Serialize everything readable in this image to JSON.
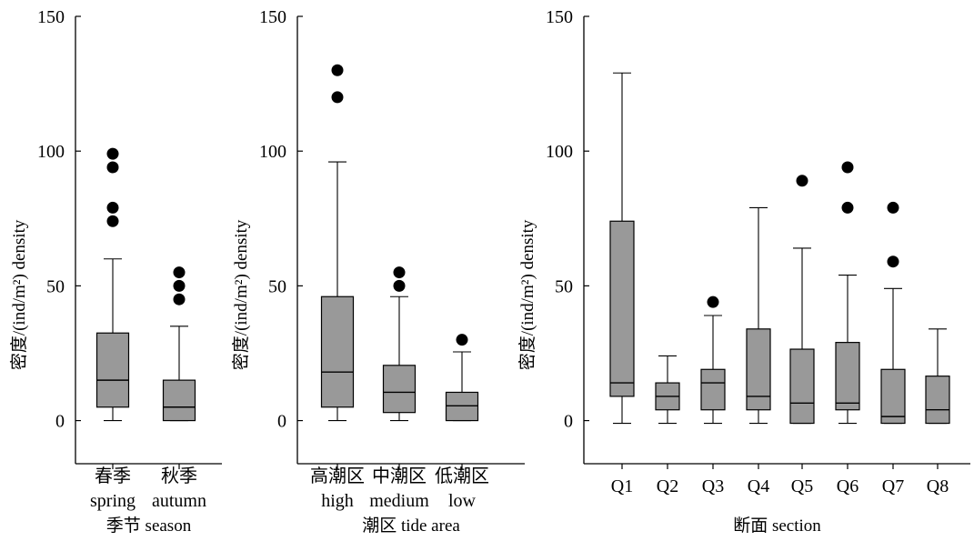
{
  "chart_data": [
    {
      "type": "boxplot",
      "ylabel": "密度/(ind/m²) density",
      "xlabel": "季节 season",
      "ylim": [
        -16,
        150
      ],
      "yticks": [
        0,
        50,
        100,
        150
      ],
      "categories": [
        {
          "label_cn": "春季",
          "label_en": "spring"
        },
        {
          "label_cn": "秋季",
          "label_en": "autumn"
        }
      ],
      "boxes": [
        {
          "whisker_low": 0,
          "q1": 5,
          "median": 15,
          "q3": 32.5,
          "whisker_high": 60,
          "outliers": [
            74,
            79,
            94,
            99
          ]
        },
        {
          "whisker_low": 0,
          "q1": 0,
          "median": 5,
          "q3": 15,
          "whisker_high": 35,
          "outliers": [
            45,
            50,
            55
          ]
        }
      ]
    },
    {
      "type": "boxplot",
      "ylabel": "密度/(ind/m²) density",
      "xlabel": "潮区 tide area",
      "ylim": [
        -16,
        150
      ],
      "yticks": [
        0,
        50,
        100,
        150
      ],
      "categories": [
        {
          "label_cn": "高潮区",
          "label_en": "high"
        },
        {
          "label_cn": "中潮区",
          "label_en": "medium"
        },
        {
          "label_cn": "低潮区",
          "label_en": "low"
        }
      ],
      "boxes": [
        {
          "whisker_low": 0,
          "q1": 5,
          "median": 18,
          "q3": 46,
          "whisker_high": 96,
          "outliers": [
            120,
            130
          ]
        },
        {
          "whisker_low": 0,
          "q1": 3,
          "median": 10.5,
          "q3": 20.5,
          "whisker_high": 46,
          "outliers": [
            50,
            55
          ]
        },
        {
          "whisker_low": 0,
          "q1": 0,
          "median": 5.5,
          "q3": 10.5,
          "whisker_high": 25.5,
          "outliers": [
            30
          ]
        }
      ]
    },
    {
      "type": "boxplot",
      "ylabel": "密度/(ind/m²) density",
      "xlabel": "断面 section",
      "ylim": [
        -16,
        150
      ],
      "yticks": [
        0,
        50,
        100,
        150
      ],
      "categories": [
        {
          "label_cn": "",
          "label_en": "Q1"
        },
        {
          "label_cn": "",
          "label_en": "Q2"
        },
        {
          "label_cn": "",
          "label_en": "Q3"
        },
        {
          "label_cn": "",
          "label_en": "Q4"
        },
        {
          "label_cn": "",
          "label_en": "Q5"
        },
        {
          "label_cn": "",
          "label_en": "Q6"
        },
        {
          "label_cn": "",
          "label_en": "Q7"
        },
        {
          "label_cn": "",
          "label_en": "Q8"
        }
      ],
      "boxes": [
        {
          "whisker_low": -1,
          "q1": 9,
          "median": 14,
          "q3": 74,
          "whisker_high": 129,
          "outliers": []
        },
        {
          "whisker_low": -1,
          "q1": 4,
          "median": 9,
          "q3": 14,
          "whisker_high": 24,
          "outliers": []
        },
        {
          "whisker_low": -1,
          "q1": 4,
          "median": 14,
          "q3": 19,
          "whisker_high": 39,
          "outliers": [
            44
          ]
        },
        {
          "whisker_low": -1,
          "q1": 4,
          "median": 9,
          "q3": 34,
          "whisker_high": 79,
          "outliers": []
        },
        {
          "whisker_low": -1,
          "q1": -1,
          "median": 6.5,
          "q3": 26.5,
          "whisker_high": 64,
          "outliers": [
            89
          ]
        },
        {
          "whisker_low": -1,
          "q1": 4,
          "median": 6.5,
          "q3": 29,
          "whisker_high": 54,
          "outliers": [
            79,
            94
          ]
        },
        {
          "whisker_low": -1,
          "q1": -1,
          "median": 1.5,
          "q3": 19,
          "whisker_high": 49,
          "outliers": [
            59,
            79
          ]
        },
        {
          "whisker_low": -1,
          "q1": -1,
          "median": 4,
          "q3": 16.5,
          "whisker_high": 34,
          "outliers": []
        }
      ]
    }
  ],
  "style": {
    "box_fill": "#999999",
    "line_color": "#000000",
    "outlier_color": "#000000"
  }
}
